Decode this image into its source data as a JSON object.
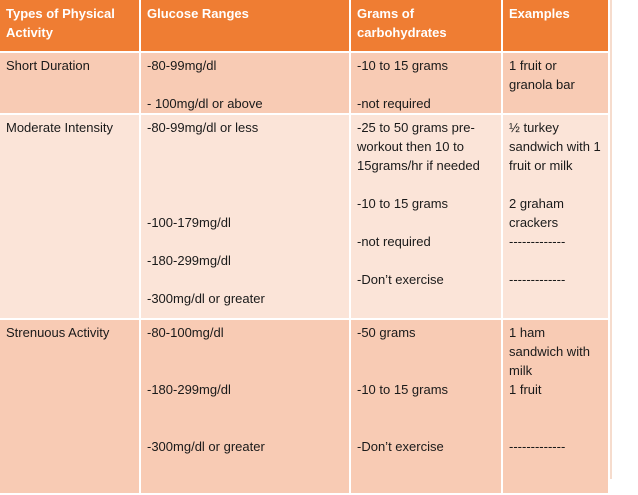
{
  "table": {
    "headers": [
      "Types of Physical Activity",
      "Glucose Ranges",
      "Grams of carbohydrates",
      "Examples"
    ],
    "rows": [
      {
        "activity": "Short Duration",
        "glucose": [
          "-80-99mg/dl",
          "- 100mg/dl or above"
        ],
        "carbs": [
          "-10 to 15 grams",
          "-not required"
        ],
        "examples": [
          "1 fruit or granola bar"
        ]
      },
      {
        "activity": "Moderate Intensity",
        "glucose": [
          "-80-99mg/dl or less",
          "-100-179mg/dl",
          "-180-299mg/dl",
          "-300mg/dl or greater"
        ],
        "carbs": [
          "-25 to 50 grams pre-workout then 10 to 15grams/hr if needed",
          "-10 to 15 grams",
          "-not required",
          "-Don’t exercise"
        ],
        "examples": [
          "½ turkey sandwich with 1 fruit or milk",
          "2 graham crackers",
          "-------------",
          "-------------"
        ]
      },
      {
        "activity": "Strenuous Activity",
        "glucose": [
          "-80-100mg/dl",
          "-180-299mg/dl",
          "-300mg/dl or greater"
        ],
        "carbs": [
          "-50 grams",
          "-10 to 15 grams",
          "-Don’t exercise"
        ],
        "examples": [
          "1 ham sandwich with milk",
          "1 fruit",
          "-------------"
        ]
      }
    ]
  },
  "colors": {
    "header": "#ef7d33",
    "row_dark": "#f8cbb4",
    "row_light": "#fbe4d8"
  }
}
